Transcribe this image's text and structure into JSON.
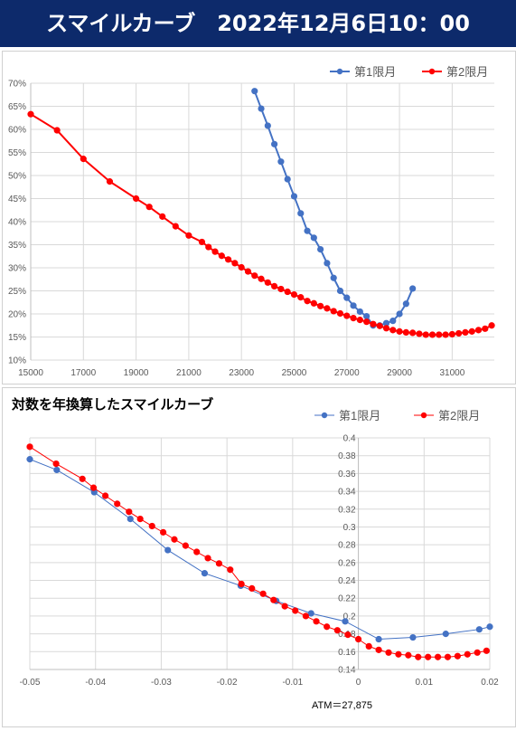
{
  "banner": {
    "title": "スマイルカーブ　2022年12月6日10：00"
  },
  "chart_data": [
    {
      "type": "line",
      "title": "",
      "xlabel": "",
      "ylabel": "",
      "x_ticks": [
        "15000",
        "17000",
        "19000",
        "21000",
        "23000",
        "25000",
        "27000",
        "29000",
        "31000"
      ],
      "y_ticks": [
        "10%",
        "15%",
        "20%",
        "25%",
        "30%",
        "35%",
        "40%",
        "45%",
        "50%",
        "55%",
        "60%",
        "65%",
        "70%"
      ],
      "xlim": [
        15000,
        32600
      ],
      "ylim": [
        10,
        70
      ],
      "grid": true,
      "legend": "top-right",
      "series": [
        {
          "name": "第1限月",
          "color": "#4472c4",
          "x": [
            23500,
            23750,
            24000,
            24250,
            24500,
            24750,
            25000,
            25250,
            25500,
            25750,
            26000,
            26250,
            26500,
            26750,
            27000,
            27250,
            27500,
            27750,
            28000,
            28250,
            28500,
            28750,
            29000,
            29250,
            29500
          ],
          "y": [
            68.3,
            64.5,
            60.8,
            56.8,
            53.0,
            49.2,
            45.5,
            41.8,
            38.0,
            36.5,
            34.0,
            31.0,
            27.8,
            25.0,
            23.5,
            21.8,
            20.5,
            19.5,
            17.5,
            17.5,
            18.0,
            18.5,
            20.0,
            22.2,
            25.5
          ]
        },
        {
          "name": "第2限月",
          "color": "#ff0000",
          "x": [
            15000,
            16000,
            17000,
            18000,
            19000,
            19500,
            20000,
            20500,
            21000,
            21500,
            21750,
            22000,
            22250,
            22500,
            22750,
            23000,
            23250,
            23500,
            23750,
            24000,
            24250,
            24500,
            24750,
            25000,
            25250,
            25500,
            25750,
            26000,
            26250,
            26500,
            26750,
            27000,
            27250,
            27500,
            27750,
            28000,
            28250,
            28500,
            28750,
            29000,
            29250,
            29500,
            29750,
            30000,
            30250,
            30500,
            30750,
            31000,
            31250,
            31500,
            31750,
            32000,
            32250,
            32500
          ],
          "y": [
            63.3,
            59.8,
            53.6,
            48.7,
            45.0,
            43.2,
            41.1,
            39.0,
            37.0,
            35.6,
            34.5,
            33.5,
            32.6,
            31.8,
            31.0,
            30.1,
            29.2,
            28.3,
            27.6,
            26.8,
            26.0,
            25.4,
            24.8,
            24.2,
            23.6,
            22.8,
            22.3,
            21.7,
            21.2,
            20.6,
            20.1,
            19.6,
            19.1,
            18.7,
            18.3,
            17.8,
            17.4,
            16.9,
            16.5,
            16.2,
            16.0,
            15.9,
            15.7,
            15.5,
            15.5,
            15.5,
            15.5,
            15.6,
            15.8,
            16.0,
            16.2,
            16.5,
            16.8,
            17.5
          ]
        }
      ]
    },
    {
      "type": "line",
      "title": "対数を年換算したスマイルカーブ",
      "xlabel": "",
      "ylabel": "",
      "x_ticks": [
        "-0.05",
        "-0.04",
        "-0.03",
        "-0.02",
        "-0.01",
        "0",
        "0.01",
        "0.02"
      ],
      "y_ticks": [
        "0.14",
        "0.16",
        "0.18",
        "0.2",
        "0.22",
        "0.24",
        "0.26",
        "0.28",
        "0.3",
        "0.32",
        "0.34",
        "0.36",
        "0.38",
        "0.4"
      ],
      "xlim": [
        -0.05,
        0.02
      ],
      "ylim": [
        0.14,
        0.4
      ],
      "grid": true,
      "legend": "top-right",
      "annotation": "ATM＝27,875",
      "series": [
        {
          "name": "第1限月",
          "color": "#4472c4",
          "x": [
            -0.05,
            -0.0459,
            -0.0402,
            -0.0347,
            -0.029,
            -0.0234,
            -0.0179,
            -0.0125,
            -0.0072,
            -0.002,
            0.0031,
            0.0083,
            0.0133,
            0.0184,
            0.02
          ],
          "y": [
            0.376,
            0.364,
            0.339,
            0.309,
            0.274,
            0.248,
            0.234,
            0.217,
            0.203,
            0.194,
            0.174,
            0.176,
            0.18,
            0.185,
            0.188
          ]
        },
        {
          "name": "第2限月",
          "color": "#ff0000",
          "x": [
            -0.05,
            -0.046,
            -0.042,
            -0.0403,
            -0.0385,
            -0.0367,
            -0.0349,
            -0.0332,
            -0.0314,
            -0.0297,
            -0.028,
            -0.0263,
            -0.0246,
            -0.0229,
            -0.0212,
            -0.0195,
            -0.0178,
            -0.0162,
            -0.0145,
            -0.0129,
            -0.0112,
            -0.0096,
            -0.008,
            -0.0064,
            -0.0048,
            -0.0032,
            -0.0016,
            0.0,
            0.0016,
            0.0031,
            0.0046,
            0.0061,
            0.0076,
            0.0091,
            0.0106,
            0.0121,
            0.0136,
            0.0151,
            0.0166,
            0.0181,
            0.0195
          ],
          "y": [
            0.39,
            0.371,
            0.354,
            0.344,
            0.335,
            0.326,
            0.317,
            0.309,
            0.301,
            0.294,
            0.286,
            0.279,
            0.272,
            0.265,
            0.259,
            0.252,
            0.236,
            0.231,
            0.225,
            0.218,
            0.211,
            0.206,
            0.2,
            0.194,
            0.188,
            0.184,
            0.179,
            0.174,
            0.166,
            0.162,
            0.159,
            0.157,
            0.156,
            0.154,
            0.154,
            0.154,
            0.154,
            0.155,
            0.157,
            0.159,
            0.161
          ]
        }
      ]
    }
  ]
}
